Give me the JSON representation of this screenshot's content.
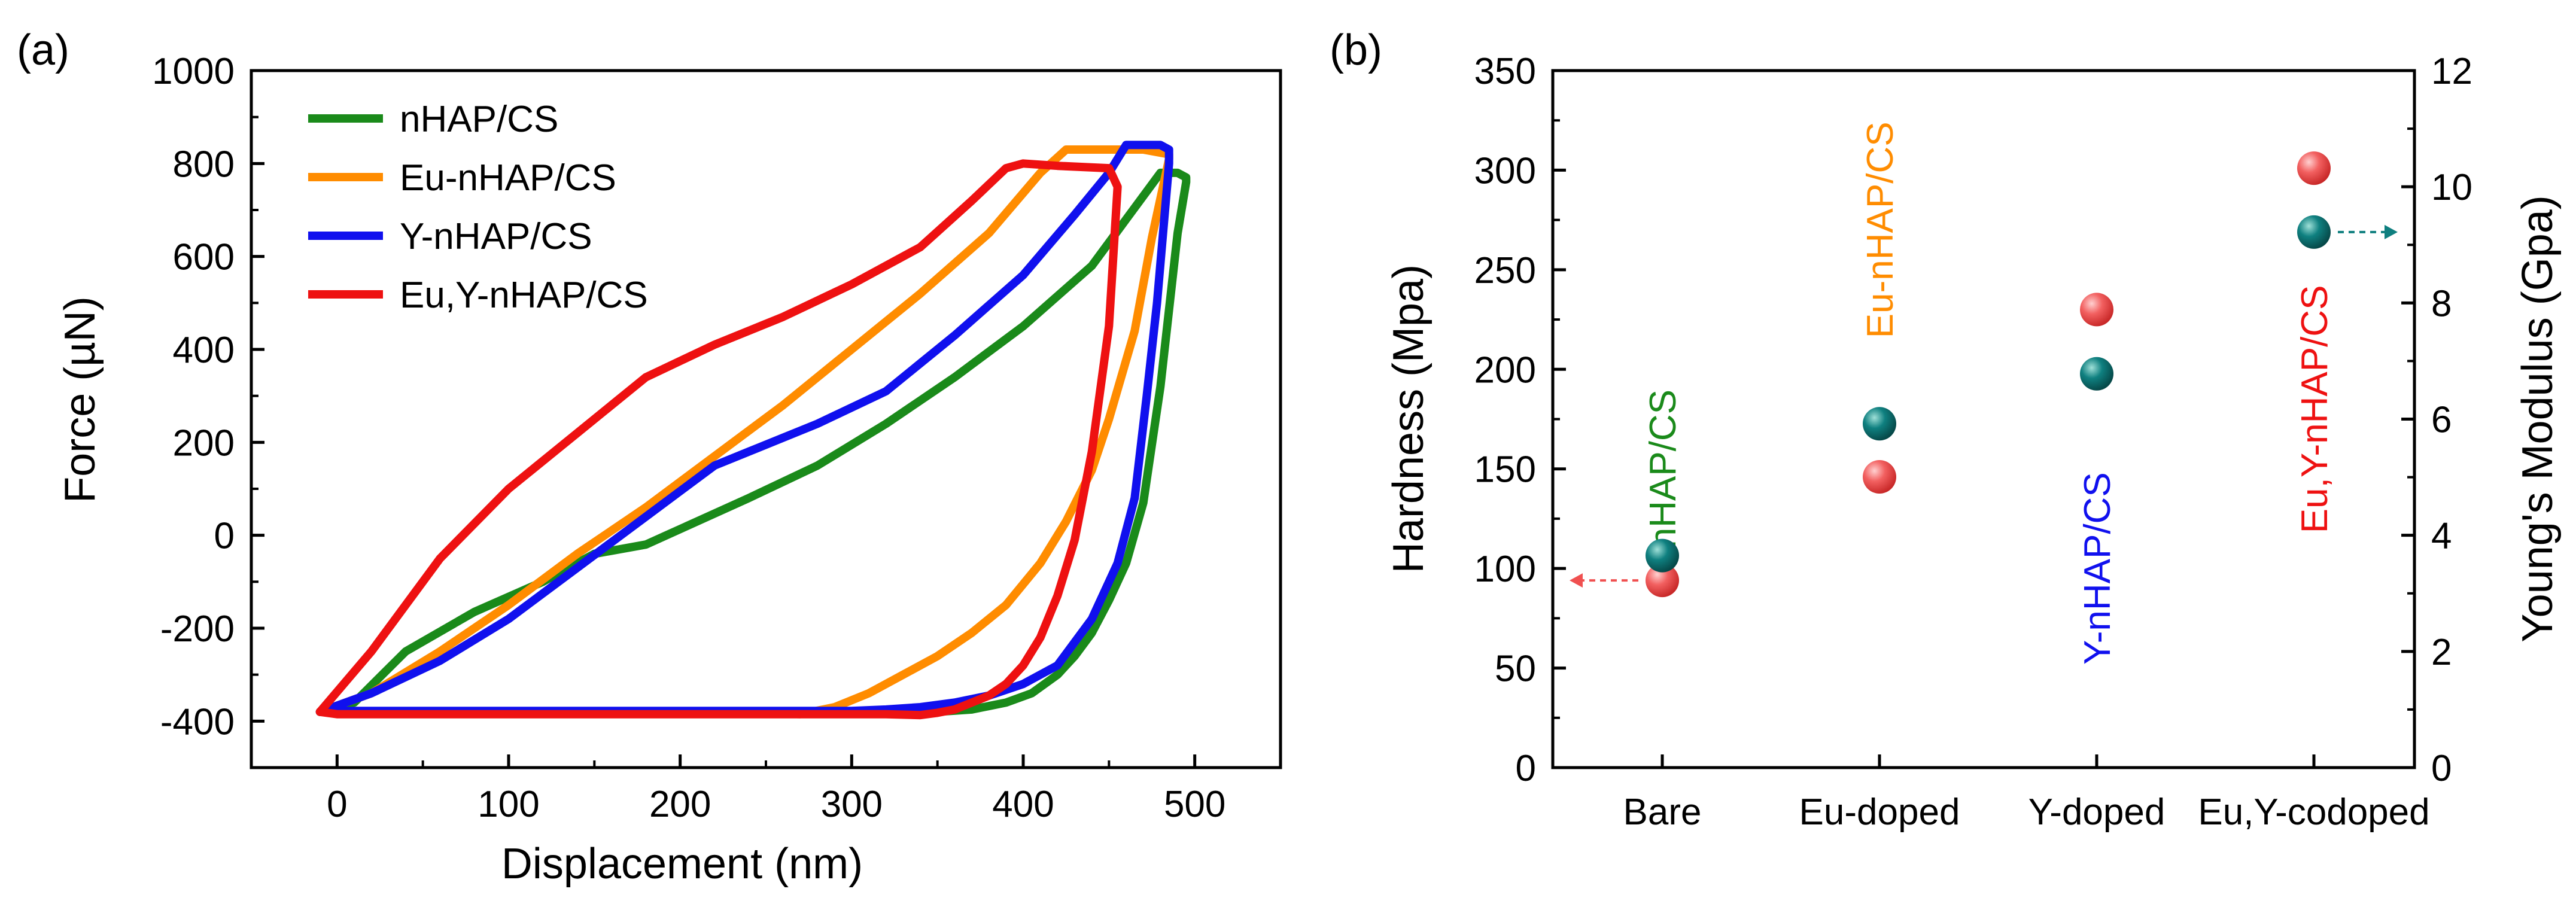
{
  "chart_data": [
    {
      "panel_label": "(a)",
      "type": "line",
      "xlabel": "Displacement (nm)",
      "ylabel": "Force (µN)",
      "xlim": [
        -50,
        550
      ],
      "ylim": [
        -500,
        1000
      ],
      "xticks": [
        0,
        100,
        200,
        300,
        400,
        500
      ],
      "yticks": [
        -400,
        -200,
        0,
        200,
        400,
        600,
        800,
        1000
      ],
      "legend_position": "top-left",
      "series": [
        {
          "name": "nHAP/CS",
          "color": "#1a8a1a",
          "x": [
            -10,
            10,
            40,
            80,
            120,
            150,
            180,
            210,
            240,
            280,
            320,
            360,
            400,
            440,
            460,
            480,
            490,
            495,
            495,
            490,
            480,
            470,
            460,
            450,
            440,
            430,
            420,
            405,
            390,
            370,
            350,
            330,
            310,
            290,
            260,
            200,
            100,
            0,
            -10
          ],
          "y": [
            -380,
            -360,
            -250,
            -165,
            -100,
            -40,
            -20,
            30,
            80,
            150,
            240,
            340,
            450,
            580,
            680,
            780,
            780,
            770,
            760,
            650,
            320,
            70,
            -60,
            -140,
            -210,
            -260,
            -300,
            -340,
            -360,
            -375,
            -380,
            -382,
            -380,
            -380,
            -380,
            -380,
            -380,
            -380,
            -380
          ]
        },
        {
          "name": "Eu-nHAP/CS",
          "color": "#ff8c00",
          "x": [
            -10,
            20,
            60,
            100,
            140,
            180,
            220,
            260,
            300,
            340,
            380,
            410,
            425,
            470,
            485,
            485,
            475,
            465,
            450,
            440,
            425,
            410,
            390,
            370,
            350,
            330,
            310,
            290,
            270,
            240,
            200,
            100,
            0,
            -10
          ],
          "y": [
            -380,
            -340,
            -250,
            -150,
            -40,
            60,
            170,
            280,
            400,
            520,
            650,
            780,
            830,
            830,
            820,
            810,
            640,
            440,
            250,
            140,
            30,
            -60,
            -150,
            -210,
            -260,
            -300,
            -340,
            -370,
            -385,
            -380,
            -380,
            -380,
            -380,
            -380
          ]
        },
        {
          "name": "Y-nHAP/CS",
          "color": "#1010ee",
          "x": [
            -10,
            20,
            60,
            100,
            140,
            180,
            220,
            240,
            280,
            320,
            360,
            400,
            430,
            450,
            460,
            480,
            485,
            485,
            478,
            472,
            465,
            455,
            440,
            420,
            400,
            380,
            360,
            340,
            320,
            300,
            200,
            100,
            0,
            -10
          ],
          "y": [
            -380,
            -340,
            -270,
            -180,
            -70,
            40,
            150,
            180,
            240,
            310,
            430,
            560,
            690,
            780,
            840,
            840,
            830,
            800,
            500,
            300,
            80,
            -60,
            -180,
            -280,
            -320,
            -345,
            -360,
            -370,
            -375,
            -378,
            -378,
            -378,
            -378,
            -380
          ]
        },
        {
          "name": "Eu,Y-nHAP/CS",
          "color": "#ee1111",
          "x": [
            -10,
            20,
            60,
            100,
            140,
            180,
            220,
            260,
            300,
            340,
            370,
            390,
            400,
            420,
            450,
            455,
            450,
            440,
            430,
            420,
            410,
            400,
            390,
            380,
            370,
            360,
            350,
            340,
            320,
            300,
            200,
            100,
            0,
            -10
          ],
          "y": [
            -380,
            -250,
            -50,
            100,
            220,
            340,
            410,
            470,
            540,
            620,
            720,
            790,
            800,
            795,
            790,
            750,
            450,
            180,
            -10,
            -130,
            -220,
            -280,
            -320,
            -345,
            -360,
            -375,
            -382,
            -387,
            -385,
            -385,
            -385,
            -385,
            -385,
            -380
          ]
        }
      ]
    },
    {
      "panel_label": "(b)",
      "type": "scatter",
      "categories": [
        "Bare",
        "Eu-doped",
        "Y-doped",
        "Eu,Y-codoped"
      ],
      "ylabel": "Hardness (Mpa)",
      "ylabel_right": "Young's Modulus (Gpa)",
      "ylim": [
        0,
        350
      ],
      "ylim_right": [
        0,
        12
      ],
      "yticks": [
        0,
        50,
        100,
        150,
        200,
        250,
        300,
        350
      ],
      "yticks_right": [
        0,
        2,
        4,
        6,
        8,
        10,
        12
      ],
      "series": [
        {
          "name": "Hardness",
          "axis": "left",
          "color": "#f05050",
          "values": [
            94,
            146,
            230,
            301
          ]
        },
        {
          "name": "Young's Modulus",
          "axis": "right",
          "color": "#0f7f7f",
          "values": [
            3.65,
            5.92,
            6.78,
            9.22
          ]
        }
      ],
      "annotations": [
        {
          "text": "nHAP/CS",
          "color": "#1a8a1a",
          "category": "Bare",
          "y_value": 150
        },
        {
          "text": "Eu-nHAP/CS",
          "color": "#ff8c00",
          "category": "Eu-doped",
          "y_value": 270
        },
        {
          "text": "Y-nHAP/CS",
          "color": "#1010ee",
          "category": "Y-doped",
          "y_value": 100
        },
        {
          "text": "Eu,Y-nHAP/CS",
          "color": "#ee1111",
          "category": "Eu,Y-codoped",
          "y_value": 180
        }
      ],
      "arrows": [
        {
          "from_category": "Bare",
          "series": "Hardness",
          "direction": "left",
          "color": "#f05050"
        },
        {
          "from_category": "Eu,Y-codoped",
          "series": "Young's Modulus",
          "direction": "right",
          "color": "#0f7f7f"
        }
      ]
    }
  ]
}
